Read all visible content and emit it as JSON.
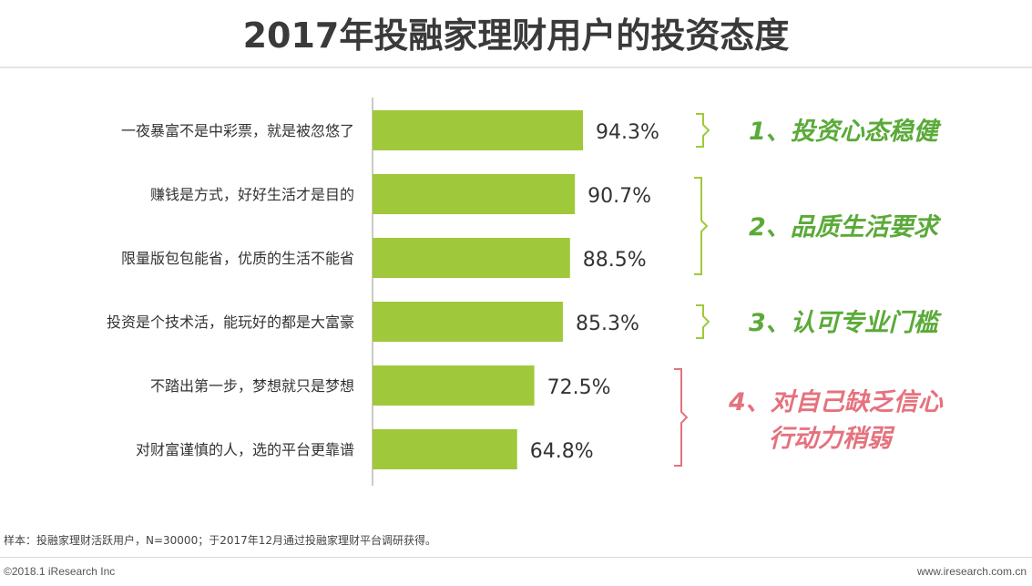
{
  "title": "2017年投融家理财用户的投资态度",
  "chart_data": {
    "type": "bar",
    "orientation": "horizontal",
    "categories": [
      "一夜暴富不是中彩票，就是被忽悠了",
      "赚钱是方式，好好生活才是目的",
      "限量版包包能省，优质的生活不能省",
      "投资是个技术活，能玩好的都是大富豪",
      "不踏出第一步，梦想就只是梦想",
      "对财富谨慎的人，选的平台更靠谱"
    ],
    "values": [
      94.3,
      90.7,
      88.5,
      85.3,
      72.5,
      64.8
    ],
    "value_labels": [
      "94.3%",
      "90.7%",
      "88.5%",
      "85.3%",
      "72.5%",
      "64.8%"
    ],
    "bar_color": "#9fc93a",
    "groups": [
      {
        "lines": [
          "1、投资心态稳健"
        ],
        "rows": [
          0,
          0
        ],
        "color": "#5aaa38"
      },
      {
        "lines": [
          "2、品质生活要求"
        ],
        "rows": [
          1,
          2
        ],
        "color": "#5aaa38"
      },
      {
        "lines": [
          "3、认可专业门槛"
        ],
        "rows": [
          3,
          3
        ],
        "color": "#5aaa38"
      },
      {
        "lines": [
          "4、对自己缺乏信心",
          "行动力稍弱"
        ],
        "rows": [
          4,
          5
        ],
        "color": "#e5727e"
      }
    ]
  },
  "footer": {
    "note": "样本：投融家理财活跃用户，N=30000；于2017年12月通过投融家理财平台调研获得。",
    "copyright": "©2018.1 iResearch Inc",
    "site": "www.iresearch.com.cn"
  }
}
